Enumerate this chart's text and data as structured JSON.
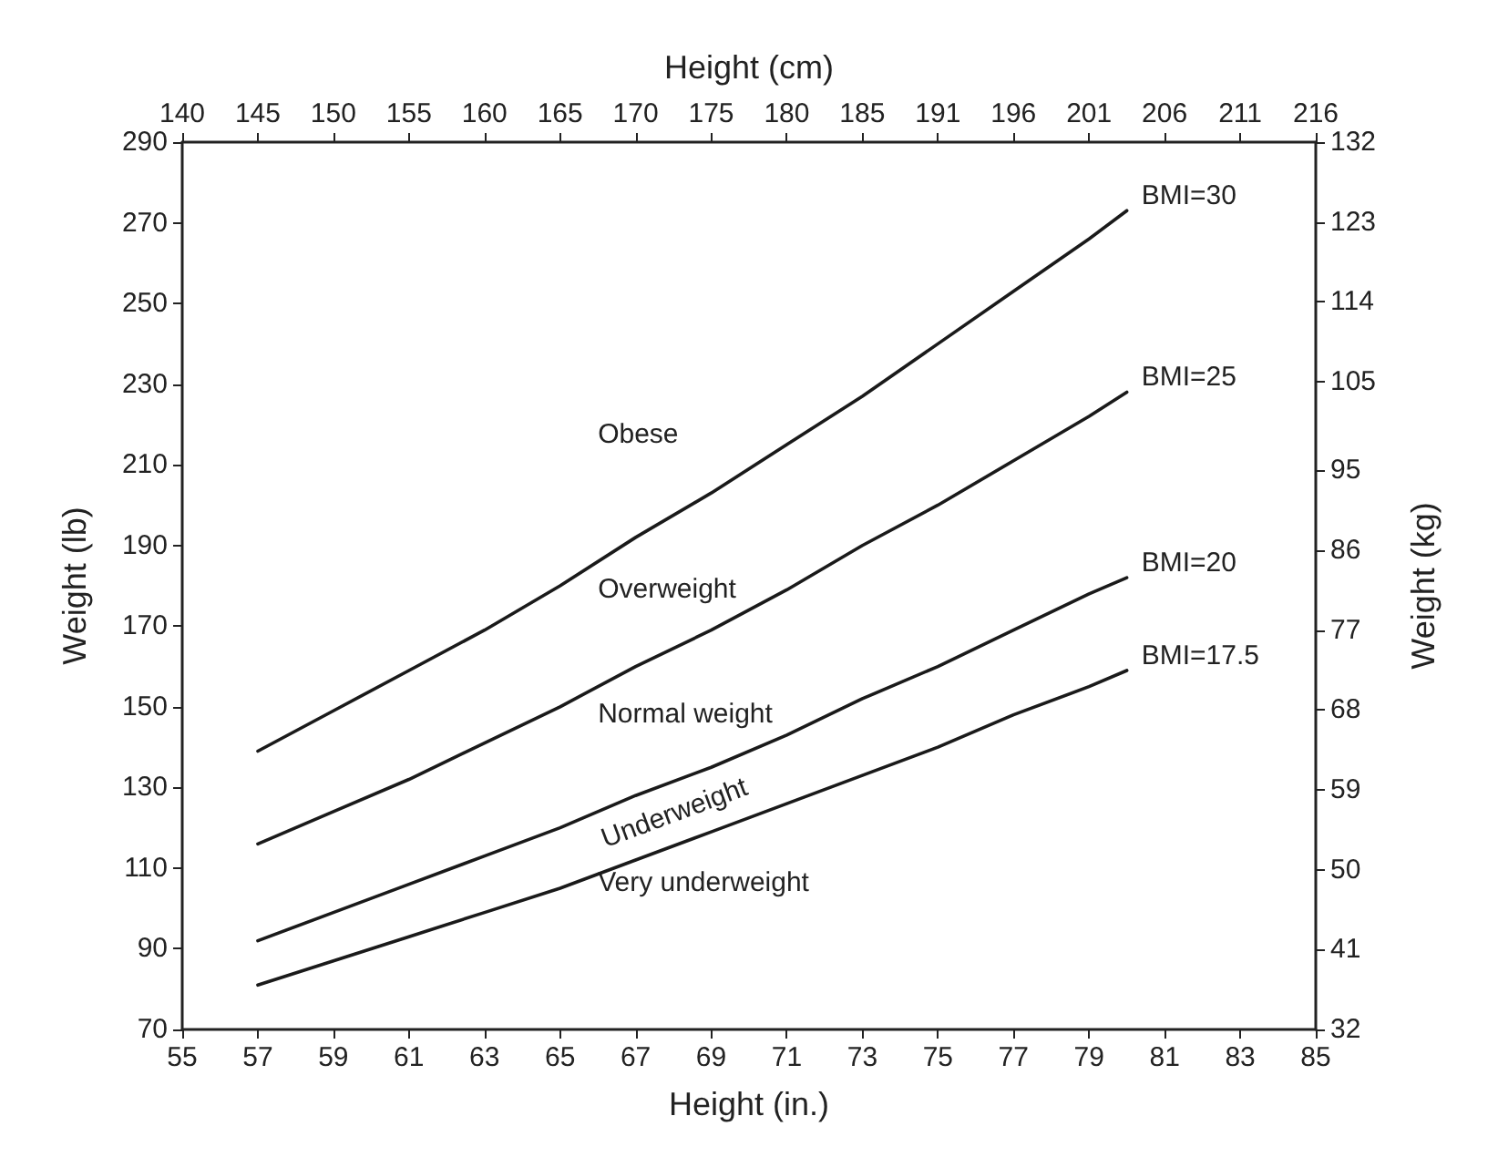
{
  "chart_data": {
    "type": "line",
    "xlabel": "Height (in.)",
    "ylabel": "Weight (lb)",
    "x2label": "Height (cm)",
    "y2label": "Weight (kg)",
    "x": [
      57,
      59,
      61,
      63,
      65,
      67,
      69,
      71,
      73,
      75,
      77,
      79,
      80
    ],
    "series": [
      {
        "name": "BMI=30",
        "color": "#1a1a1a",
        "values": [
          139,
          149,
          159,
          169,
          180,
          192,
          203,
          215,
          227,
          240,
          253,
          266,
          273
        ]
      },
      {
        "name": "BMI=25",
        "color": "#1a1a1a",
        "values": [
          116,
          124,
          132,
          141,
          150,
          160,
          169,
          179,
          190,
          200,
          211,
          222,
          228
        ]
      },
      {
        "name": "BMI=20",
        "color": "#1a1a1a",
        "values": [
          92,
          99,
          106,
          113,
          120,
          128,
          135,
          143,
          152,
          160,
          169,
          178,
          182
        ]
      },
      {
        "name": "BMI=17.5",
        "color": "#1a1a1a",
        "values": [
          81,
          87,
          93,
          99,
          105,
          112,
          119,
          126,
          133,
          140,
          148,
          155,
          159
        ]
      }
    ],
    "xlim": [
      55,
      85
    ],
    "xticks": [
      55,
      57,
      59,
      61,
      63,
      65,
      67,
      69,
      71,
      73,
      75,
      77,
      79,
      81,
      83,
      85
    ],
    "ylim": [
      70,
      290
    ],
    "yticks": [
      70,
      90,
      110,
      130,
      150,
      170,
      190,
      210,
      230,
      250,
      270,
      290
    ],
    "x2lim": [
      139.7,
      215.9
    ],
    "x2ticks": [
      {
        "value": 139.7,
        "label": "140"
      },
      {
        "value": 144.78,
        "label": "145"
      },
      {
        "value": 149.86,
        "label": "150"
      },
      {
        "value": 154.94,
        "label": "155"
      },
      {
        "value": 160.02,
        "label": "160"
      },
      {
        "value": 165.1,
        "label": "165"
      },
      {
        "value": 170.18,
        "label": "170"
      },
      {
        "value": 175.26,
        "label": "175"
      },
      {
        "value": 180.34,
        "label": "180"
      },
      {
        "value": 185.42,
        "label": "185"
      },
      {
        "value": 190.5,
        "label": "191"
      },
      {
        "value": 195.58,
        "label": "196"
      },
      {
        "value": 200.66,
        "label": "201"
      },
      {
        "value": 205.74,
        "label": "206"
      },
      {
        "value": 210.82,
        "label": "211"
      },
      {
        "value": 215.9,
        "label": "216"
      }
    ],
    "y2lim": [
      32,
      132
    ],
    "y2ticks": [
      32,
      41,
      50,
      59,
      68,
      77,
      86,
      95,
      105,
      114,
      123,
      132
    ],
    "annotations": [
      "Obese",
      "Overweight",
      "Normal weight",
      "Underweight",
      "Very underweight"
    ],
    "grid": false,
    "legend": false,
    "marker": "none",
    "line_style": "solid"
  }
}
